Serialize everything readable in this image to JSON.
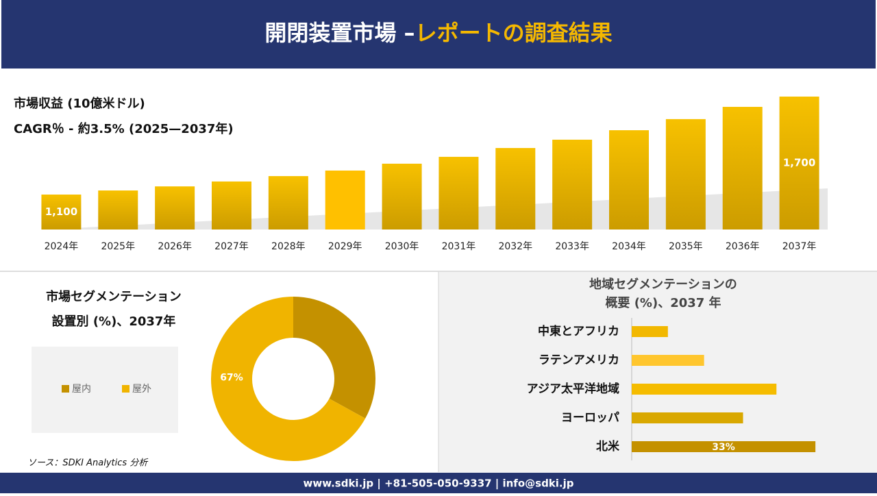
{
  "header": {
    "title": "開閉装置市場 –",
    "title_highlight": "レポートの調査結果"
  },
  "chart_data": [
    {
      "type": "bar",
      "title": "市場収益 (10億米ドル)",
      "subtitle": "CAGR％ - 約3.5% (2025—2037年)",
      "categories": [
        "2024年",
        "2025年",
        "2026年",
        "2027年",
        "2028年",
        "2029年",
        "2030年",
        "2031年",
        "2032年",
        "2033年",
        "2034年",
        "2035年",
        "2036年",
        "2037年"
      ],
      "values": [
        1100,
        1125,
        1150,
        1180,
        1213,
        1247,
        1289,
        1331,
        1385,
        1436,
        1494,
        1562,
        1637,
        1700
      ],
      "value_labels": [
        "1,100",
        null,
        null,
        null,
        null,
        null,
        null,
        null,
        null,
        null,
        null,
        null,
        null,
        "1,700"
      ],
      "color": "#e3ab00",
      "ylim": [
        886,
        1746
      ]
    },
    {
      "type": "pie",
      "donut": true,
      "title": [
        "市場セグメンテーション",
        "設置別 (%)、2037年"
      ],
      "categories": [
        "屋内",
        "屋外"
      ],
      "values": [
        33,
        67
      ],
      "value_labels": [
        null,
        "67%"
      ],
      "colors": [
        "#c49100",
        "#f0b400"
      ],
      "legend": "left"
    },
    {
      "type": "barh",
      "title": [
        "地域セグメンテーションの",
        "概要 (%)、2037 年"
      ],
      "categories": [
        "中東とアフリカ",
        "ラテンアメリカ",
        "アジア太平洋地域",
        "ヨーロッパ",
        "北米"
      ],
      "values": [
        6.5,
        13,
        26,
        20,
        33
      ],
      "value_labels": [
        null,
        null,
        null,
        null,
        "33%"
      ],
      "colors": [
        "#f2b800",
        "#ffc62e",
        "#f5bc00",
        "#d9a800",
        "#c49100"
      ],
      "xlim": [
        0,
        40
      ]
    }
  ],
  "source": "ソース：SDKI Analytics 分析",
  "footer": "www.sdki.jp | +81-505-050-9337 | info@sdki.jp"
}
